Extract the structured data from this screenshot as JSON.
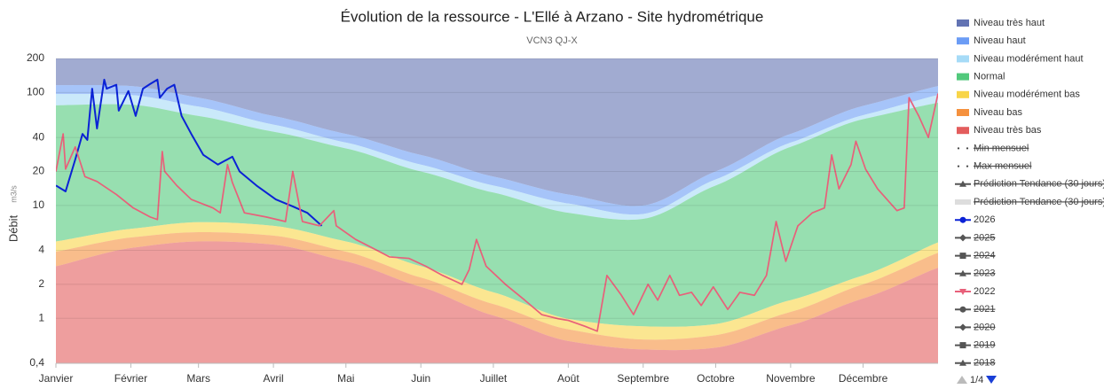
{
  "chart_data": {
    "type": "area-line",
    "title": "Évolution de la ressource - L'Ellé à Arzano - Site hydrométrique",
    "subtitle": "VCN3 QJ-X",
    "y_label": "Débit",
    "y_unit": "m3/s",
    "yscale": "log",
    "grid": true,
    "legend_position": "right",
    "legend_page": "1/4",
    "xlim": [
      1,
      366
    ],
    "xticks": [
      {
        "value": 1,
        "label": "Janvier"
      },
      {
        "value": 32,
        "label": "Février"
      },
      {
        "value": 60,
        "label": "Mars"
      },
      {
        "value": 91,
        "label": "Avril"
      },
      {
        "value": 121,
        "label": "Mai"
      },
      {
        "value": 152,
        "label": "Juin"
      },
      {
        "value": 182,
        "label": "Juillet"
      },
      {
        "value": 213,
        "label": "Août"
      },
      {
        "value": 244,
        "label": "Septembre"
      },
      {
        "value": 274,
        "label": "Octobre"
      },
      {
        "value": 305,
        "label": "Novembre"
      },
      {
        "value": 335,
        "label": "Décembre"
      }
    ],
    "ylim": [
      0.4,
      200
    ],
    "yticks": [
      {
        "value": 0.4,
        "label": "0,4"
      },
      1,
      2,
      4,
      10,
      20,
      40,
      100,
      200
    ],
    "band_x": [
      1,
      32,
      60,
      91,
      121,
      152,
      182,
      213,
      244,
      274,
      305,
      335,
      366
    ],
    "bands": [
      {
        "name": "Niveau très haut",
        "color": "#6273b3"
      },
      {
        "name": "Niveau haut",
        "color": "#6b9cf5",
        "values": [
          116,
          114,
          90,
          62,
          43,
          28,
          18,
          12.5,
          10,
          20,
          43,
          76,
          114
        ]
      },
      {
        "name": "Niveau modérément haut",
        "color": "#a6dbf7",
        "values": [
          97,
          95,
          75,
          52,
          36,
          23,
          15,
          10.4,
          8.4,
          17,
          36,
          63,
          95
        ]
      },
      {
        "name": "Normal",
        "color": "#52c97c",
        "values": [
          77,
          78,
          62,
          45,
          32,
          20,
          13,
          8.6,
          7.6,
          15,
          33,
          58,
          81
        ]
      },
      {
        "name": "Niveau modérément bas",
        "color": "#f8d548",
        "values": [
          4.8,
          6.2,
          7.1,
          6.6,
          4.8,
          2.9,
          1.7,
          0.99,
          0.85,
          0.89,
          1.45,
          2.4,
          4.7
        ]
      },
      {
        "name": "Niveau bas",
        "color": "#f5913e",
        "values": [
          3.9,
          5.2,
          5.8,
          5.4,
          3.9,
          2.3,
          1.34,
          0.8,
          0.65,
          0.71,
          1.14,
          2.0,
          3.8
        ]
      },
      {
        "name": "Niveau très bas",
        "color": "#e35d5d",
        "values": [
          2.9,
          4.2,
          4.8,
          4.5,
          3.2,
          1.9,
          1.06,
          0.63,
          0.53,
          0.55,
          0.87,
          1.5,
          2.8
        ]
      }
    ],
    "series": [
      {
        "name": "Min mensuel",
        "color": "#444444",
        "symbol": "dots",
        "visible": false
      },
      {
        "name": "Max mensuel",
        "color": "#444444",
        "symbol": "dots",
        "visible": false
      },
      {
        "name": "Prédiction Tendance (30 jours)",
        "color": "#555555",
        "symbol": "triangle",
        "visible": false
      },
      {
        "name": "Prédiction Tendance (30 jours)",
        "color": "#dddddd",
        "symbol": "line",
        "visible": false
      },
      {
        "name": "2026",
        "color": "#0b22d6",
        "symbol": "circle",
        "visible": true,
        "x": [
          1,
          5,
          9,
          12,
          14,
          16,
          18,
          21,
          22,
          26,
          27,
          31,
          34,
          37,
          40,
          43,
          44,
          47,
          50,
          53,
          57,
          62,
          68,
          74,
          77,
          84,
          92,
          99,
          105,
          111
        ],
        "values": [
          15,
          13.3,
          25.5,
          43,
          38,
          108,
          48,
          130,
          108,
          117,
          69,
          103,
          62,
          108,
          119,
          130,
          90,
          108,
          117,
          62,
          43,
          28,
          23,
          27,
          20,
          15,
          11.3,
          9.8,
          8.6,
          6.6
        ]
      },
      {
        "name": "2025",
        "color": "#555555",
        "symbol": "diamond",
        "visible": false
      },
      {
        "name": "2024",
        "color": "#555555",
        "symbol": "square",
        "visible": false
      },
      {
        "name": "2023",
        "color": "#555555",
        "symbol": "triangle",
        "visible": false
      },
      {
        "name": "2022",
        "color": "#e8607a",
        "symbol": "triangle-down",
        "visible": true,
        "x": [
          1,
          4,
          5,
          9,
          13,
          18,
          26,
          33,
          40,
          43,
          45,
          46,
          51,
          57,
          66,
          69,
          72,
          74,
          79,
          88,
          96,
          99,
          103,
          110,
          116,
          117,
          125,
          132,
          139,
          147,
          154,
          161,
          169,
          172,
          175,
          179,
          187,
          195,
          202,
          209,
          213,
          220,
          225,
          229,
          235,
          240,
          246,
          250,
          255,
          259,
          264,
          268,
          273,
          279,
          284,
          290,
          295,
          299,
          303,
          308,
          314,
          319,
          322,
          325,
          330,
          332,
          336,
          341,
          349,
          352,
          354,
          358,
          362,
          366
        ],
        "values": [
          20,
          43,
          21,
          33,
          18,
          16.3,
          12.5,
          9.5,
          7.9,
          7.5,
          30,
          20,
          15,
          11.3,
          9.5,
          8.6,
          23,
          16,
          8.6,
          7.9,
          7.2,
          20,
          7.2,
          6.6,
          9,
          6.6,
          5,
          4.2,
          3.5,
          3.4,
          2.9,
          2.4,
          2.0,
          2.7,
          5,
          2.9,
          2.0,
          1.45,
          1.08,
          0.99,
          0.96,
          0.85,
          0.77,
          2.4,
          1.6,
          1.08,
          2.0,
          1.45,
          2.4,
          1.6,
          1.7,
          1.3,
          1.9,
          1.2,
          1.7,
          1.6,
          2.4,
          7.2,
          3.2,
          6.6,
          8.6,
          9.5,
          28,
          14,
          23,
          37,
          21,
          14,
          9,
          9.5,
          90,
          62,
          40,
          98
        ]
      },
      {
        "name": "2021",
        "color": "#555555",
        "symbol": "circle",
        "visible": false
      },
      {
        "name": "2020",
        "color": "#555555",
        "symbol": "diamond",
        "visible": false
      },
      {
        "name": "2019",
        "color": "#555555",
        "symbol": "square",
        "visible": false
      },
      {
        "name": "2018",
        "color": "#555555",
        "symbol": "triangle",
        "visible": false
      }
    ]
  }
}
